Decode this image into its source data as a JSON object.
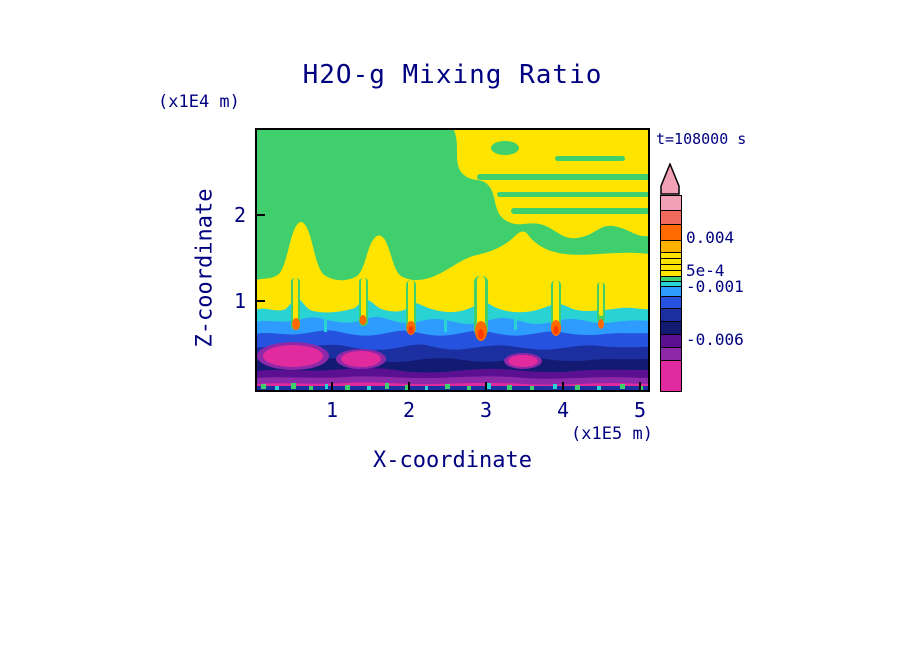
{
  "labels": {
    "title": "H2O-g Mixing Ratio",
    "time": "t=108000 s",
    "x_axis": "X-coordinate",
    "x_unit": "(x1E5 m)",
    "z_axis": "Z-coordinate",
    "z_unit": "(x1E4 m)"
  },
  "axes": {
    "x_ticks": [
      "1",
      "2",
      "3",
      "4",
      "5"
    ],
    "z_ticks": [
      "2",
      "1"
    ]
  },
  "colorbar": {
    "arrow_color": "#f2a0b6",
    "labels": [
      "0.004",
      "5e-4",
      "-0.001",
      "-0.006"
    ],
    "segments": [
      {
        "color": "#f2a0b6",
        "h": 14
      },
      {
        "color": "#ef6a5a",
        "h": 14
      },
      {
        "color": "#ff6a00",
        "h": 16
      },
      {
        "color": "#ffb300",
        "h": 12
      },
      {
        "color": "#ffe400",
        "h": 6
      },
      {
        "color": "#ffe400",
        "h": 6
      },
      {
        "color": "#ffe400",
        "h": 6
      },
      {
        "color": "#ffe400",
        "h": 6
      },
      {
        "color": "#3fcf6d",
        "h": 5
      },
      {
        "color": "#29d3d3",
        "h": 5
      },
      {
        "color": "#2e9bff",
        "h": 10
      },
      {
        "color": "#2553e0",
        "h": 12
      },
      {
        "color": "#1c2fa0",
        "h": 13
      },
      {
        "color": "#121a72",
        "h": 13
      },
      {
        "color": "#5a1090",
        "h": 13
      },
      {
        "color": "#8d28a8",
        "h": 13
      },
      {
        "color": "#e02a9e",
        "h": 31
      }
    ]
  },
  "chart_data": {
    "type": "heatmap",
    "subtype": "filled_contour",
    "title": "H2O-g Mixing Ratio",
    "xlabel": "X-coordinate (x1E5 m)",
    "ylabel": "Z-coordinate (x1E4 m)",
    "time_annotation": "t=108000 s",
    "time_seconds": 108000,
    "x_tick_values": [
      1,
      2,
      3,
      4,
      5
    ],
    "x_range_x1E5_m": [
      0,
      5.2
    ],
    "z_tick_values": [
      1,
      2
    ],
    "z_range_x1E4_m": [
      0,
      2.75
    ],
    "labeled_contour_levels": [
      0.004,
      0.0005,
      -0.001,
      -0.006
    ],
    "colorbar_orientation": "vertical-right",
    "colorbar_overflow_arrow": "top",
    "palette_top_to_bottom": [
      "#f2a0b6",
      "#ef6a5a",
      "#ff6a00",
      "#ffb300",
      "#ffe400",
      "#3fcf6d",
      "#29d3d3",
      "#2e9bff",
      "#2553e0",
      "#1c2fa0",
      "#121a72",
      "#5a1090",
      "#8d28a8",
      "#e02a9e"
    ],
    "field_regions": [
      {
        "region": "upper interior, z greater than ~1.2e4 m",
        "value_band": "near 0 (green) with yellow ~5e-4 patches and streaks in upper right quadrant"
      },
      {
        "region": "mid band, z ~0.8e4 to 1.2e4 m",
        "value_band": "yellow ~5e-4 layer spanning full width with upward plume bulges"
      },
      {
        "region": "lower layers, z below ~0.8e4 m",
        "value_band": "horizontally stratified negative values: -0.001 (blue) decreasing to -0.006 and below (purple/magenta) toward surface"
      },
      {
        "region": "plume cores near z ~0.5e4 m at x ~0.5, 1.4, 2.0, 2.9, 3.9, 4.5 (x1E5 m)",
        "value_band": "local positive maxima up to ~0.004 (orange/red cores)"
      }
    ],
    "grid": false,
    "legend_position": "right colorbar"
  }
}
